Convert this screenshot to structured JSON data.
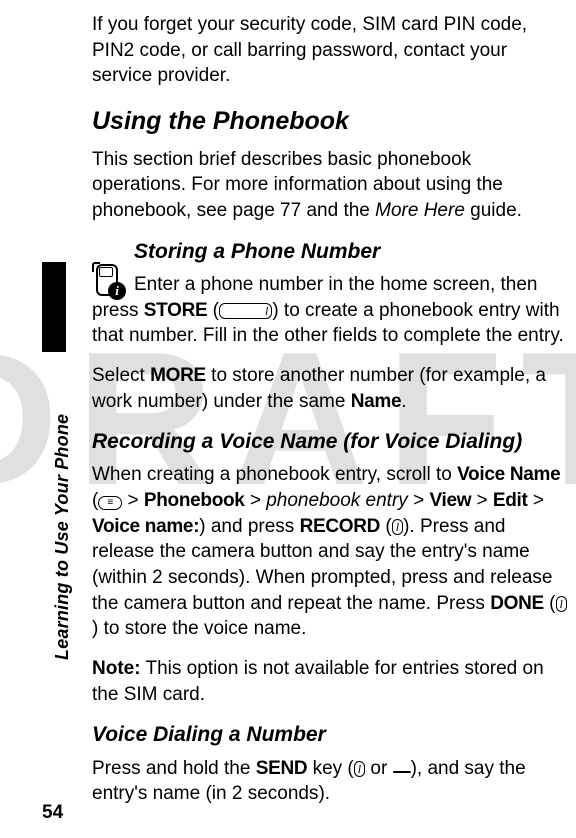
{
  "watermark": "DRAFT",
  "sidebar_label": "Learning to Use Your Phone",
  "page_number": "54",
  "info_badge": "i",
  "softkey_glyph": "l",
  "menukey_glyph": "≡",
  "smartkey_glyph": " ",
  "intro": "If you forget your security code, SIM card PIN code, PIN2 code, or call barring password, contact your service provider.",
  "h1": "Using the Phonebook",
  "h1_para_a": "This section brief describes basic phonebook operations. For more information about using the phonebook, see page 77 and the ",
  "h1_para_more": "More Here",
  "h1_para_b": " guide.",
  "h2a": "Storing a Phone Number",
  "h2a_p_a": "Enter a phone number in the home screen, then press ",
  "h2a_store": "STORE",
  "h2a_p_b": " (",
  "h2a_p_c": ") to create a phonebook entry with that number. Fill in the other fields to complete the entry.",
  "h2a_p2_a": "Select ",
  "h2a_more": "MORE",
  "h2a_p2_b": " to store another number (for example, a work number) under the same ",
  "h2a_name": "Name",
  "h2a_p2_c": ".",
  "h2b": "Recording a Voice Name (for Voice Dialing)",
  "h2b_p_a": "When creating a phonebook entry, scroll to ",
  "h2b_voicename": "Voice Name",
  "h2b_p_b": " (",
  "h2b_p_c": " > ",
  "h2b_phonebook": "Phonebook",
  "h2b_entry": "phonebook entry",
  "h2b_view": "View",
  "h2b_edit": "Edit",
  "h2b_voicename2": "Voice name:",
  "h2b_p_d": ") and press ",
  "h2b_record": "RECORD",
  "h2b_p_e": " (",
  "h2b_p_f": "). Press and release the camera button and say the entry's name (within 2 seconds). When prompted, press and release the camera button and repeat the name. Press ",
  "h2b_done": "DONE",
  "h2b_p_g": " (",
  "h2b_p_h": ") to store the voice name.",
  "note_label": "Note:",
  "note_text": " This option is not available for entries stored on the SIM card.",
  "h2c": "Voice Dialing a Number",
  "h2c_p_a": "Press and hold the ",
  "h2c_send": "SEND",
  "h2c_p_b": " key (",
  "h2c_p_or": " or ",
  "h2c_p_c": "), and say the entry's name (in 2 seconds)."
}
